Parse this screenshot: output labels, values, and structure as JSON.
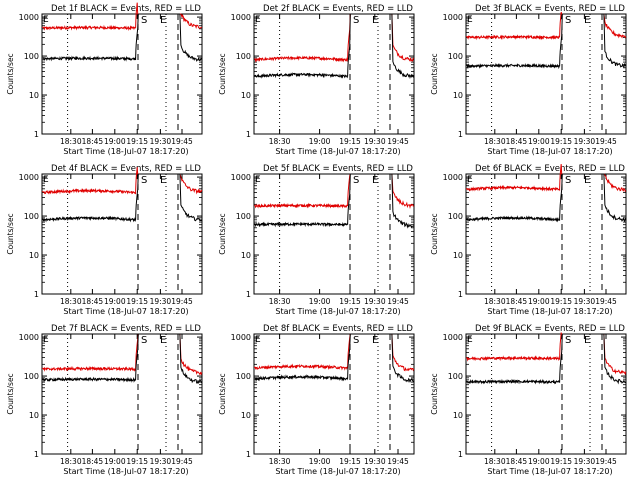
{
  "figure": {
    "ylabel": "Counts/sec",
    "xlabel": "Start Time (18-Jul-07 18:17:20)",
    "y_ticks": [
      "1",
      "10",
      "100",
      "1000"
    ],
    "x_ticks": [
      "18:30",
      "18:45",
      "19:00",
      "19:15",
      "19:30",
      "19:45"
    ],
    "marker_S": "S",
    "marker_E": "E",
    "marker_top_left": "E",
    "colors": {
      "events": "#000000",
      "lld": "#e00000",
      "axes": "#000000",
      "background": "#ffffff"
    }
  },
  "chart_data": [
    {
      "type": "line",
      "title": "Det 1f BLACK = Events, RED = LLD",
      "xlabel": "Start Time (18-Jul-07 18:17:20)",
      "ylabel": "Counts/sec",
      "x_range_minutes": [
        0,
        100
      ],
      "ylim": [
        1,
        1200
      ],
      "y_scale": "log",
      "lld_level": 520,
      "events_level": 85,
      "lld_after": 550,
      "events_after": 80
    },
    {
      "type": "line",
      "title": "Det 2f BLACK = Events, RED = LLD",
      "xlabel": "Start Time (18-Jul-07 18:17:20)",
      "ylabel": "Counts/sec",
      "x_range_minutes": [
        0,
        100
      ],
      "ylim": [
        1,
        1200
      ],
      "y_scale": "log",
      "lld_level": 80,
      "events_level": 30,
      "lld_after": 80,
      "events_after": 30
    },
    {
      "type": "line",
      "title": "Det 3f BLACK = Events, RED = LLD",
      "xlabel": "Start Time (18-Jul-07 18:17:20)",
      "ylabel": "Counts/sec",
      "x_range_minutes": [
        0,
        100
      ],
      "ylim": [
        1,
        1200
      ],
      "y_scale": "log",
      "lld_level": 300,
      "events_level": 55,
      "lld_after": 320,
      "events_after": 55
    },
    {
      "type": "line",
      "title": "Det 4f BLACK = Events, RED = LLD",
      "xlabel": "Start Time (18-Jul-07 18:17:20)",
      "ylabel": "Counts/sec",
      "x_range_minutes": [
        0,
        100
      ],
      "ylim": [
        1,
        1200
      ],
      "y_scale": "log",
      "lld_level": 400,
      "events_level": 80,
      "lld_after": 420,
      "events_after": 80
    },
    {
      "type": "line",
      "title": "Det 5f BLACK = Events, RED = LLD",
      "xlabel": "Start Time (18-Jul-07 18:17:20)",
      "ylabel": "Counts/sec",
      "x_range_minutes": [
        0,
        100
      ],
      "ylim": [
        1,
        1200
      ],
      "y_scale": "log",
      "lld_level": 180,
      "events_level": 60,
      "lld_after": 180,
      "events_after": 55
    },
    {
      "type": "line",
      "title": "Det 6f BLACK = Events, RED = LLD",
      "xlabel": "Start Time (18-Jul-07 18:17:20)",
      "ylabel": "Counts/sec",
      "x_range_minutes": [
        0,
        100
      ],
      "ylim": [
        1,
        1200
      ],
      "y_scale": "log",
      "lld_level": 480,
      "events_level": 80,
      "lld_after": 470,
      "events_after": 80
    },
    {
      "type": "line",
      "title": "Det 7f BLACK = Events, RED = LLD",
      "xlabel": "Start Time (18-Jul-07 18:17:20)",
      "ylabel": "Counts/sec",
      "x_range_minutes": [
        0,
        100
      ],
      "ylim": [
        1,
        1200
      ],
      "y_scale": "log",
      "lld_level": 150,
      "events_level": 80,
      "lld_after": 120,
      "events_after": 70
    },
    {
      "type": "line",
      "title": "Det 8f BLACK = Events, RED = LLD",
      "xlabel": "Start Time (18-Jul-07 18:17:20)",
      "ylabel": "Counts/sec",
      "x_range_minutes": [
        0,
        100
      ],
      "ylim": [
        1,
        1200
      ],
      "y_scale": "log",
      "lld_level": 160,
      "events_level": 85,
      "lld_after": 140,
      "events_after": 75
    },
    {
      "type": "line",
      "title": "Det 9f BLACK = Events, RED = LLD",
      "xlabel": "Start Time (18-Jul-07 18:17:20)",
      "ylabel": "Counts/sec",
      "x_range_minutes": [
        0,
        100
      ],
      "ylim": [
        1,
        1200
      ],
      "y_scale": "log",
      "lld_level": 280,
      "events_level": 70,
      "lld_after": 120,
      "events_after": 70
    }
  ]
}
